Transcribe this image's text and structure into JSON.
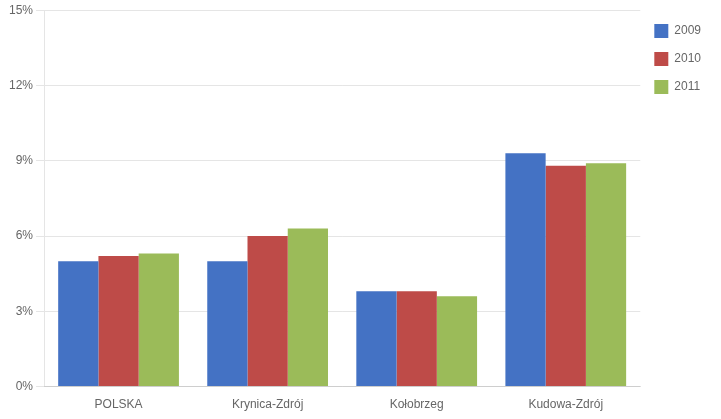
{
  "chart_data": {
    "type": "bar",
    "categories": [
      "POLSKA",
      "Krynica-Zdrój",
      "Kołobrzeg",
      "Kudowa-Zdrój"
    ],
    "series": [
      {
        "name": "2009",
        "color": "#4472C4",
        "values": [
          5.0,
          5.0,
          3.8,
          9.3
        ]
      },
      {
        "name": "2010",
        "color": "#BE4B48",
        "values": [
          5.2,
          6.0,
          3.8,
          8.8
        ]
      },
      {
        "name": "2011",
        "color": "#9BBB59",
        "values": [
          5.3,
          6.3,
          3.6,
          8.9
        ]
      }
    ],
    "ylim": [
      0,
      15
    ],
    "yticks": [
      {
        "value": 0,
        "label": "0%"
      },
      {
        "value": 3,
        "label": "3%"
      },
      {
        "value": 6,
        "label": "6%"
      },
      {
        "value": 9,
        "label": "9%"
      },
      {
        "value": 12,
        "label": "12%"
      },
      {
        "value": 15,
        "label": "15%"
      }
    ],
    "grid": true,
    "legend": "right"
  }
}
